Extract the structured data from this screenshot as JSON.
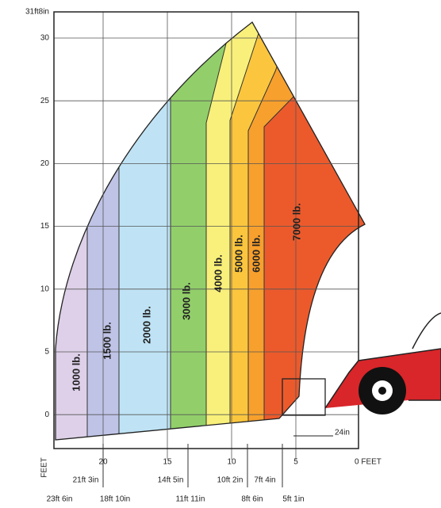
{
  "y_axis": {
    "top_label": "31ft8in",
    "ticks": [
      "30",
      "25",
      "20",
      "15",
      "10",
      "5",
      "0"
    ],
    "unit": "FEET"
  },
  "x_axis": {
    "ticks": [
      "20",
      "15",
      "10",
      "5"
    ],
    "end_label": "0 FEET"
  },
  "zones": [
    "1000 lb.",
    "1500 lb.",
    "2000 lb.",
    "3000 lb.",
    "4000 lb.",
    "5000 lb.",
    "6000 lb.",
    "7000 lb."
  ],
  "dimensions": {
    "upper_row": [
      "21ft 3in",
      "14ft 5in",
      "10ft 2in",
      "7ft 4in"
    ],
    "lower_row": [
      "23ft 6in",
      "18ft 10in",
      "11ft 11in",
      "8ft 6in",
      "5ft 1in"
    ],
    "clearance": "24in"
  }
}
